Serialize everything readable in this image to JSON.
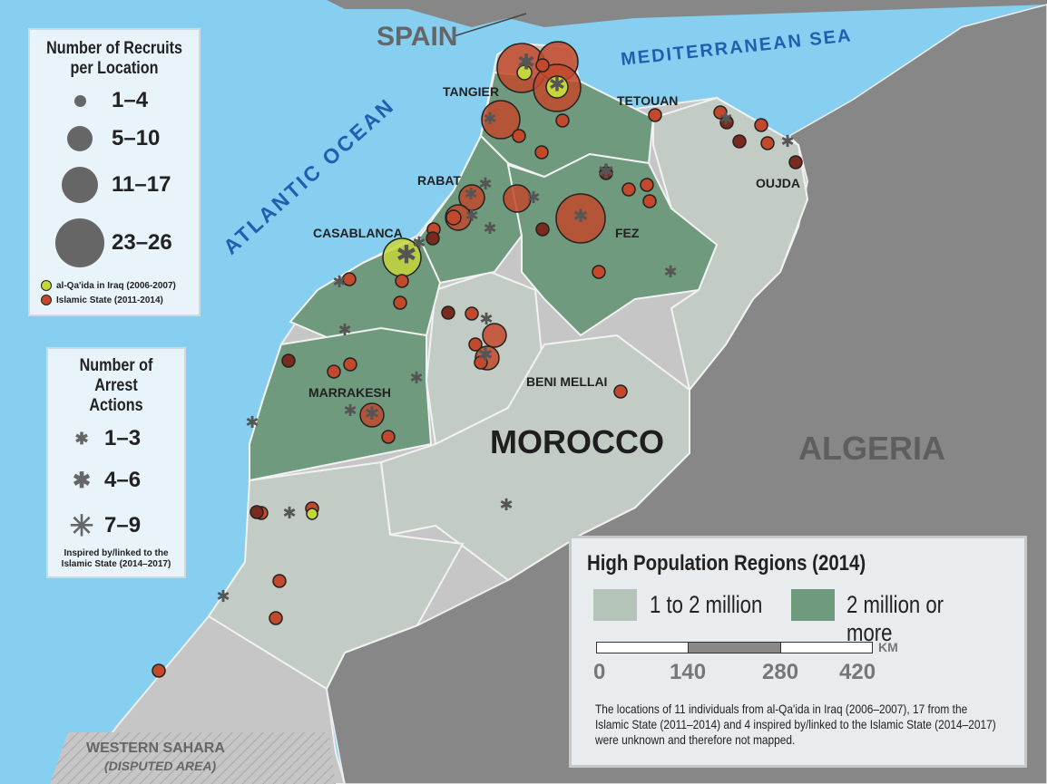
{
  "map": {
    "labels": {
      "spain": "SPAIN",
      "mediterranean": "MEDITERRANEAN SEA",
      "atlantic": "ATLANTIC OCEAN",
      "tangier": "TANGIER",
      "tetouan": "TETOUAN",
      "oujda": "OUJDA",
      "rabat": "RABAT",
      "casablanca": "CASABLANCA",
      "fez": "FEZ",
      "marrakesh": "MARRAKESH",
      "beni_mellal": "BENI MELLAI",
      "morocco": "MOROCCO",
      "algeria": "ALGERIA",
      "western_sahara": "WESTERN SAHARA",
      "disputed": "(DISPUTED AREA)"
    },
    "colors": {
      "ocean": "#86cff0",
      "foreign_land": "#878787",
      "region_light": "#c3ccc4",
      "region_dark": "#6f9a7d",
      "other_land": "#c6c6c6",
      "islamic_state": "#c2492b",
      "al_qaida_iraq": "#c5d639"
    }
  },
  "legend_recruits": {
    "title": "Number of Recruits per Location",
    "sizes": [
      "1–4",
      "5–10",
      "11–17",
      "23–26"
    ],
    "groups": [
      {
        "label": "al-Qa'ida in Iraq (2006-2007)",
        "color": "#c5d639"
      },
      {
        "label": "Islamic State (2011-2014)",
        "color": "#c2492b"
      }
    ]
  },
  "legend_arrests": {
    "title": "Number of Arrest Actions",
    "sizes": [
      "1–3",
      "4–6",
      "7–9"
    ],
    "note": "Inspired by/linked to the Islamic State (2014–2017)"
  },
  "population": {
    "title": "High Population Regions (2014)",
    "classes": [
      {
        "label": "1 to 2 million",
        "color": "#b5c4b8"
      },
      {
        "label": "2 million or more",
        "color": "#6f9a7d"
      }
    ],
    "scale": {
      "unit": "KM",
      "ticks": [
        "0",
        "140",
        "280",
        "420"
      ]
    },
    "footnote": "The locations of 11 individuals from al-Qa'ida in Iraq (2006–2007), 17 from the Islamic State (2011–2014) and 4 inspired by/linked to the Islamic State (2014–2017) were unknown and therefore not mapped."
  }
}
